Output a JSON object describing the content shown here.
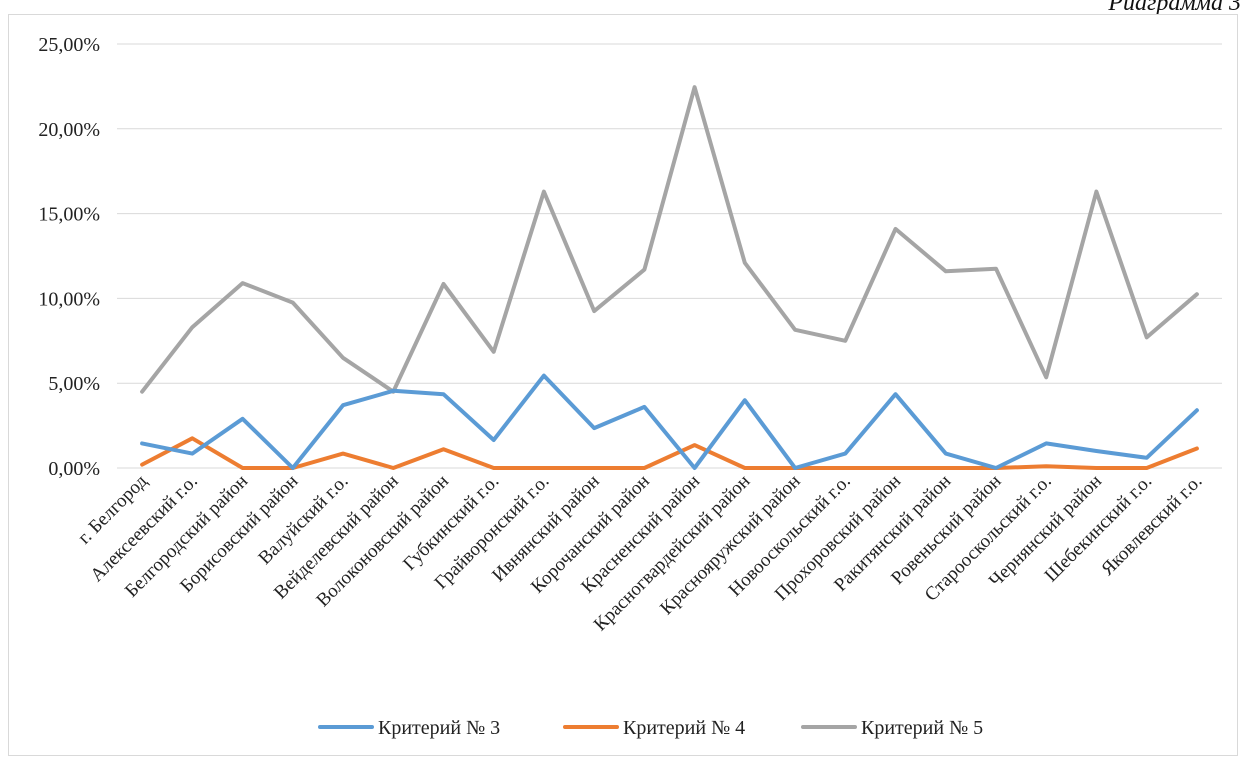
{
  "caption": "Риаграмма 3",
  "chart_data": {
    "type": "line",
    "title": "",
    "xlabel": "",
    "ylabel": "",
    "ylim": [
      0,
      25
    ],
    "yticks": [
      0,
      5,
      10,
      15,
      20,
      25
    ],
    "ytick_labels": [
      "0,00%",
      "5,00%",
      "10,00%",
      "15,00%",
      "20,00%",
      "25,00%"
    ],
    "grid": true,
    "legend_position": "bottom",
    "categories": [
      "г. Белгород",
      "Алексеевский г.о.",
      "Белгородский район",
      "Борисовский район",
      "Валуйский г.о.",
      "Вейделевский район",
      "Волоконовский район",
      "Губкинский г.о.",
      "Грайворонский г.о.",
      "Ивнянский район",
      "Корочанский район",
      "Красненский район",
      "Красногвардейский район",
      "Краснояружский район",
      "Новооскольский г.о.",
      "Прохоровский район",
      "Ракитянский район",
      "Ровеньский район",
      "Старооскольский г.о.",
      "Чернянский район",
      "Шебекинский г.о.",
      "Яковлевский г.о."
    ],
    "series": [
      {
        "name": "Критерий № 3",
        "color": "#5b9bd5",
        "values": [
          1.45,
          0.85,
          2.9,
          0.0,
          3.7,
          4.55,
          4.35,
          1.65,
          5.45,
          2.35,
          3.6,
          0.0,
          4.0,
          0.0,
          0.85,
          4.35,
          0.85,
          0.0,
          1.45,
          1.0,
          0.6,
          3.4
        ]
      },
      {
        "name": "Критерий № 4",
        "color": "#ed7d31",
        "values": [
          0.2,
          1.75,
          0.0,
          0.0,
          0.85,
          0.0,
          1.1,
          0.0,
          0.0,
          0.0,
          0.0,
          1.35,
          0.0,
          0.0,
          0.0,
          0.0,
          0.0,
          0.0,
          0.1,
          0.0,
          0.0,
          1.15
        ]
      },
      {
        "name": "Критерий № 5",
        "color": "#a5a5a5",
        "values": [
          4.5,
          8.3,
          10.9,
          9.75,
          6.5,
          4.5,
          10.85,
          6.85,
          16.3,
          9.25,
          11.7,
          22.45,
          12.1,
          8.15,
          7.5,
          14.1,
          11.6,
          11.75,
          5.35,
          16.3,
          7.7,
          10.25
        ]
      }
    ]
  }
}
